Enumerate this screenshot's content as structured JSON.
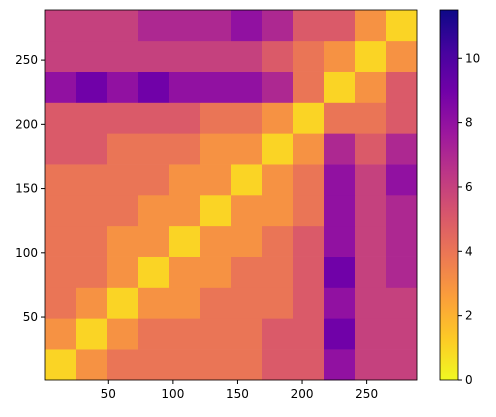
{
  "chart_data": {
    "type": "heatmap",
    "colormap": "plasma_r",
    "x_bins": [
      1,
      25,
      49,
      73,
      97,
      121,
      145,
      169,
      193,
      217,
      241,
      265,
      289
    ],
    "y_bins": [
      1,
      25,
      49,
      73,
      97,
      121,
      145,
      169,
      193,
      217,
      241,
      265,
      289
    ],
    "values": [
      [
        1,
        3,
        4,
        4,
        4,
        4,
        4,
        5,
        5,
        8,
        6,
        6
      ],
      [
        3,
        1,
        3,
        4,
        4,
        4,
        4,
        5,
        5,
        9,
        6,
        6
      ],
      [
        4,
        3,
        1,
        3,
        3,
        4,
        4,
        4,
        5,
        8,
        6,
        6
      ],
      [
        4,
        4,
        3,
        1,
        3,
        3,
        4,
        4,
        5,
        9,
        6,
        7
      ],
      [
        4,
        4,
        3,
        3,
        1,
        3,
        3,
        4,
        5,
        8,
        6,
        7
      ],
      [
        4,
        4,
        4,
        3,
        3,
        1,
        3,
        3,
        4,
        8,
        6,
        7
      ],
      [
        4,
        4,
        4,
        4,
        3,
        3,
        1,
        3,
        4,
        8,
        6,
        8
      ],
      [
        5,
        5,
        4,
        4,
        4,
        3,
        3,
        1,
        3,
        7,
        5,
        7
      ],
      [
        5,
        5,
        5,
        5,
        5,
        4,
        4,
        3,
        1,
        4,
        4,
        5
      ],
      [
        8,
        9,
        8,
        9,
        8,
        8,
        8,
        7,
        4,
        1,
        3,
        5
      ],
      [
        6,
        6,
        6,
        6,
        6,
        6,
        6,
        5,
        4,
        3,
        1,
        3
      ],
      [
        6,
        6,
        6,
        7,
        7,
        7,
        8,
        7,
        5,
        5,
        3,
        1
      ]
    ],
    "xlim": [
      1,
      289
    ],
    "xticks": [
      50,
      100,
      150,
      200,
      250
    ],
    "ylim": [
      1,
      289
    ],
    "yticks": [
      50,
      100,
      150,
      200,
      250
    ],
    "zlim": [
      0,
      11.5
    ],
    "zticks": [
      0,
      2,
      4,
      6,
      8,
      10
    ]
  }
}
